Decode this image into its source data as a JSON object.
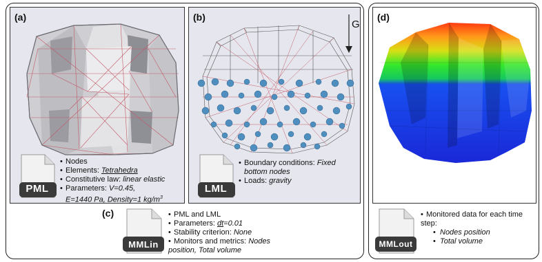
{
  "panels": {
    "a": {
      "label": "(a)",
      "file_badge": "PML",
      "items": [
        {
          "text": "Nodes"
        },
        {
          "prefix": "Elements: ",
          "value": "Tetrahedra"
        },
        {
          "prefix": "Constitutive law: ",
          "value": "linear elastic"
        },
        {
          "prefix": "Parameters: ",
          "value": "V=0.45,"
        },
        {
          "value": "E=1440 Pa, Density=1 kg/m",
          "sup": "3"
        }
      ]
    },
    "b": {
      "label": "(b)",
      "gravity_label": "G",
      "file_badge": "LML",
      "items": [
        {
          "prefix": "Boundary conditions: ",
          "value": "Fixed"
        },
        {
          "value": "bottom nodes"
        },
        {
          "prefix": "Loads: ",
          "value": "gravity"
        }
      ]
    },
    "c": {
      "label": "(c)",
      "file_badge": "MMLin",
      "items": [
        {
          "text": "PML and LML"
        },
        {
          "prefix": "Parameters: ",
          "value": "dt",
          "suffix": "=0.01"
        },
        {
          "prefix": "Stability criterion: ",
          "value": "None"
        },
        {
          "prefix": "Monitors and metrics: ",
          "value": "Nodes"
        },
        {
          "value": "position, Total volume"
        }
      ]
    },
    "d": {
      "label": "(d)",
      "file_badge": "MMLout",
      "heading": "Monitored data for each time",
      "heading2": "step:",
      "items": [
        "Nodes position",
        "Total volume"
      ]
    }
  },
  "colors": {
    "mesh_face": "#d4d4d7",
    "mesh_edge": "#c25a66",
    "node": "#4f8fbf",
    "badge_dark": "#3a3a3a"
  }
}
